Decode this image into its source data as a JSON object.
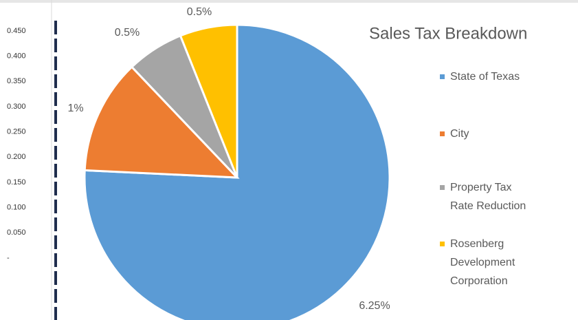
{
  "chart_data": [
    {
      "type": "pie",
      "title": "Sales Tax Breakdown",
      "categories": [
        "State of Texas",
        "City",
        "Property Tax Rate Reduction",
        "Rosenberg Development Corporation"
      ],
      "values": [
        6.25,
        1,
        0.5,
        0.5
      ],
      "value_labels": [
        "6.25%",
        "1%",
        "0.5%",
        "0.5%"
      ],
      "colors": [
        "#5b9bd5",
        "#ed7d31",
        "#a5a5a5",
        "#ffc000"
      ],
      "legend": "right"
    },
    {
      "type": "axis",
      "ylim": [
        0,
        0.45
      ],
      "yticks": [
        {
          "value": 0.45,
          "label": "0.450"
        },
        {
          "value": 0.4,
          "label": "0.400"
        },
        {
          "value": 0.35,
          "label": "0.350"
        },
        {
          "value": 0.3,
          "label": "0.300"
        },
        {
          "value": 0.25,
          "label": "0.250"
        },
        {
          "value": 0.2,
          "label": "0.200"
        },
        {
          "value": 0.15,
          "label": "0.150"
        },
        {
          "value": 0.1,
          "label": "0.100"
        },
        {
          "value": 0.05,
          "label": "0.050"
        },
        {
          "value": 0,
          "label": "-"
        }
      ]
    }
  ]
}
